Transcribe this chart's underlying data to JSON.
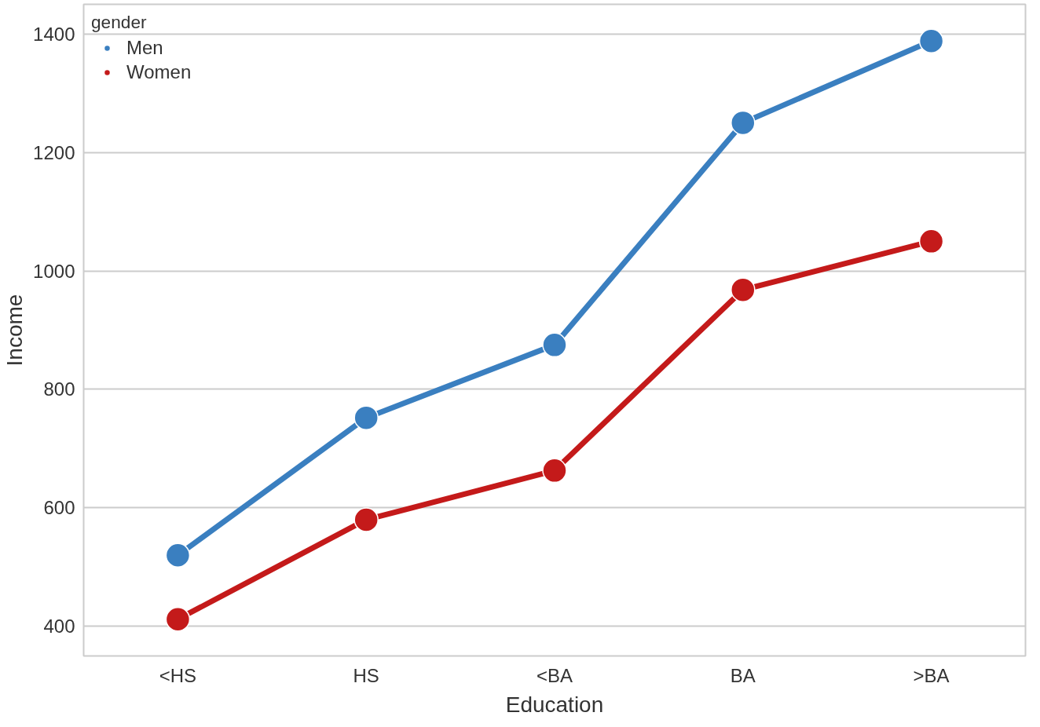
{
  "chart_data": {
    "type": "line",
    "xlabel": "Education",
    "ylabel": "Income",
    "legend_title": "gender",
    "categories": [
      "<HS",
      "HS",
      "<BA",
      "BA",
      ">BA"
    ],
    "series": [
      {
        "name": "Men",
        "color": "#3a7fc0",
        "values": [
          520,
          752,
          875,
          1250,
          1388
        ]
      },
      {
        "name": "Women",
        "color": "#c41a1a",
        "values": [
          412,
          580,
          663,
          968,
          1050
        ]
      }
    ],
    "ylim": [
      350,
      1450
    ],
    "yticks": [
      400,
      600,
      800,
      1000,
      1200,
      1400
    ],
    "grid": "y",
    "legend": "top left",
    "marker": "circle",
    "line_style": "solid"
  }
}
